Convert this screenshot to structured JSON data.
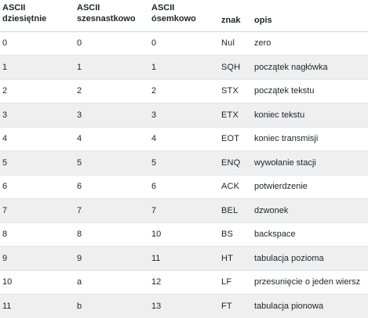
{
  "table": {
    "headers": [
      {
        "line1": "ASCII",
        "line2": "dziesiętnie"
      },
      {
        "line1": "ASCII",
        "line2": "szesnastkowo"
      },
      {
        "line1": "ASCII",
        "line2": "ósemkowo"
      },
      {
        "line1": "",
        "line2": "znak"
      },
      {
        "line1": "",
        "line2": "opis"
      }
    ],
    "rows": [
      [
        "0",
        "0",
        "0",
        "Nul",
        "zero"
      ],
      [
        "1",
        "1",
        "1",
        "SQH",
        "początek nagłówka"
      ],
      [
        "2",
        "2",
        "2",
        "STX",
        "początek tekstu"
      ],
      [
        "3",
        "3",
        "3",
        "ETX",
        "koniec tekstu"
      ],
      [
        "4",
        "4",
        "4",
        "EOT",
        "koniec transmisji"
      ],
      [
        "5",
        "5",
        "5",
        "ENQ",
        "wywołanie stacji"
      ],
      [
        "6",
        "6",
        "6",
        "ACK",
        "potwierdzenie"
      ],
      [
        "7",
        "7",
        "7",
        "BEL",
        "dzwonek"
      ],
      [
        "8",
        "8",
        "10",
        "BS",
        "backspace"
      ],
      [
        "9",
        "9",
        "11",
        "HT",
        "tabulacja pozioma"
      ],
      [
        "10",
        "a",
        "12",
        "LF",
        "przesunięcie o jeden wiersz"
      ],
      [
        "11",
        "b",
        "13",
        "FT",
        "tabulacja pionowa"
      ]
    ]
  }
}
